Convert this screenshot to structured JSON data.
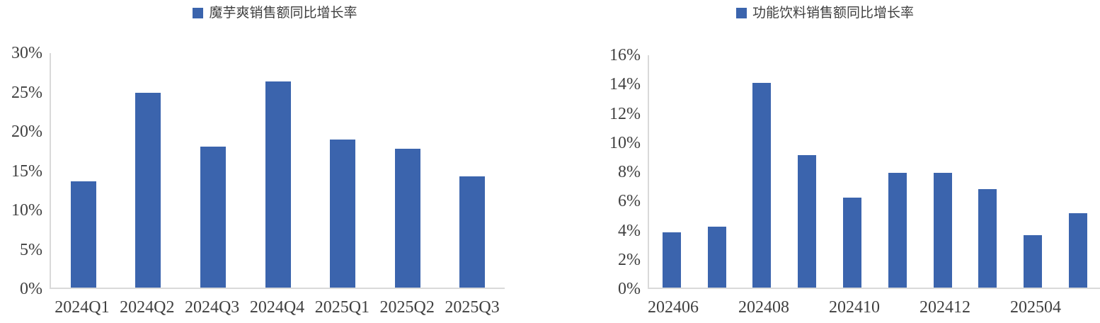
{
  "page": {
    "background_color": "#ffffff",
    "text_color": "#404040",
    "axis_line_color": "#d9d9d9"
  },
  "chart_data": [
    {
      "type": "bar",
      "title": "魔芋爽销售额同比增长率",
      "legend_position": "top-center",
      "legend_marker": "square",
      "bar_color": "#3b64ad",
      "grid": false,
      "unit": "%",
      "ylim": [
        0,
        30
      ],
      "y_tick_step": 5,
      "categories": [
        "2024Q1",
        "2024Q2",
        "2024Q3",
        "2024Q4",
        "2025Q1",
        "2025Q2",
        "2025Q3"
      ],
      "values": [
        13.6,
        24.9,
        18.0,
        26.4,
        18.9,
        17.8,
        14.2
      ],
      "x_tick_labels": [
        "2024Q1",
        "2024Q2",
        "2024Q3",
        "2024Q4",
        "2025Q1",
        "2025Q2",
        "2025Q3"
      ],
      "y_ticks": [
        {
          "label": "30%",
          "value": 30
        },
        {
          "label": "25%",
          "value": 25
        },
        {
          "label": "20%",
          "value": 20
        },
        {
          "label": "15%",
          "value": 15
        },
        {
          "label": "10%",
          "value": 10
        },
        {
          "label": "5%",
          "value": 5
        },
        {
          "label": "0%",
          "value": 0
        }
      ]
    },
    {
      "type": "bar",
      "title": "功能饮料销售额同比增长率",
      "legend_position": "top-center",
      "legend_marker": "square",
      "bar_color": "#3b64ad",
      "grid": false,
      "unit": "%",
      "ylim": [
        0,
        16
      ],
      "y_tick_step": 2,
      "categories": [
        "202406",
        "",
        "202408",
        "",
        "202410",
        "",
        "202412",
        "",
        "202504",
        ""
      ],
      "values": [
        3.8,
        4.2,
        14.1,
        9.1,
        6.2,
        7.9,
        7.9,
        6.8,
        3.6,
        5.1
      ],
      "x_tick_labels": [
        "202406",
        "",
        "202408",
        "",
        "202410",
        "",
        "202412",
        "",
        "202504",
        ""
      ],
      "y_ticks": [
        {
          "label": "16%",
          "value": 16
        },
        {
          "label": "14%",
          "value": 14
        },
        {
          "label": "12%",
          "value": 12
        },
        {
          "label": "10%",
          "value": 10
        },
        {
          "label": "8%",
          "value": 8
        },
        {
          "label": "6%",
          "value": 6
        },
        {
          "label": "4%",
          "value": 4
        },
        {
          "label": "2%",
          "value": 2
        },
        {
          "label": "0%",
          "value": 0
        }
      ]
    }
  ]
}
